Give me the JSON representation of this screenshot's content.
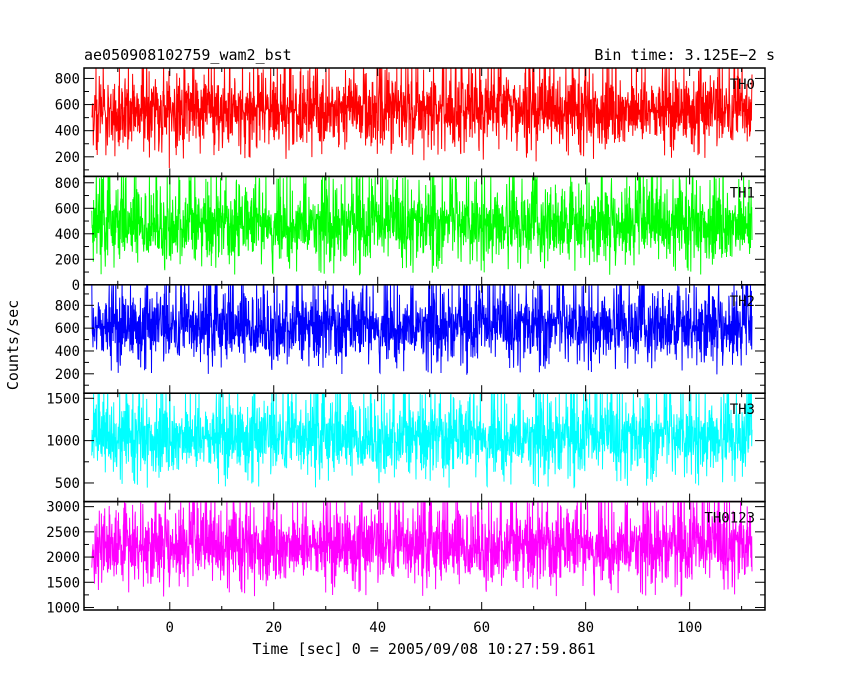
{
  "header": {
    "title": "ae050908102759_wam2_bst",
    "bin_time": "Bin time: 3.125E−2 s"
  },
  "axes": {
    "xlabel": "Time [sec] 0 = 2005/09/08 10:27:59.861",
    "ylabel": "Counts/sec"
  },
  "chart_data": {
    "type": "line",
    "x_range": [
      -16.5,
      114.5
    ],
    "x_ticks": [
      0,
      20,
      40,
      60,
      80,
      100
    ],
    "x_tick_labels": [
      "0",
      "20",
      "40",
      "60",
      "80",
      "100"
    ],
    "data_x_range": [
      -15,
      112
    ],
    "bin_time_s": 0.03125,
    "panels": [
      {
        "name": "TH0",
        "color": "#ff0000",
        "ylim": [
          50,
          880
        ],
        "yticks": [
          200,
          400,
          600,
          800
        ],
        "ytick_labels": [
          "200",
          "400",
          "600",
          "800"
        ],
        "approx_baseline": 230,
        "approx_peak": 880
      },
      {
        "name": "TH1",
        "color": "#00ff00",
        "ylim": [
          0,
          850
        ],
        "yticks": [
          0,
          200,
          400,
          600,
          800
        ],
        "ytick_labels": [
          "0",
          "200",
          "400",
          "600",
          "800"
        ],
        "approx_baseline": 130,
        "approx_peak": 820
      },
      {
        "name": "TH2",
        "color": "#0000ff",
        "ylim": [
          30,
          980
        ],
        "yticks": [
          200,
          400,
          600,
          800
        ],
        "ytick_labels": [
          "200",
          "400",
          "600",
          "800"
        ],
        "approx_baseline": 250,
        "approx_peak": 980
      },
      {
        "name": "TH3",
        "color": "#00ffff",
        "ylim": [
          280,
          1560
        ],
        "yticks": [
          500,
          1000,
          1500
        ],
        "ytick_labels": [
          "500",
          "1000",
          "1500"
        ],
        "approx_baseline": 520,
        "approx_peak": 1560
      },
      {
        "name": "TH0123",
        "color": "#ff00ff",
        "ylim": [
          950,
          3100
        ],
        "yticks": [
          1000,
          1500,
          2000,
          2500,
          3000
        ],
        "ytick_labels": [
          "1000",
          "1500",
          "2000",
          "2500",
          "3000"
        ],
        "approx_baseline": 1350,
        "approx_peak": 3100
      }
    ]
  }
}
